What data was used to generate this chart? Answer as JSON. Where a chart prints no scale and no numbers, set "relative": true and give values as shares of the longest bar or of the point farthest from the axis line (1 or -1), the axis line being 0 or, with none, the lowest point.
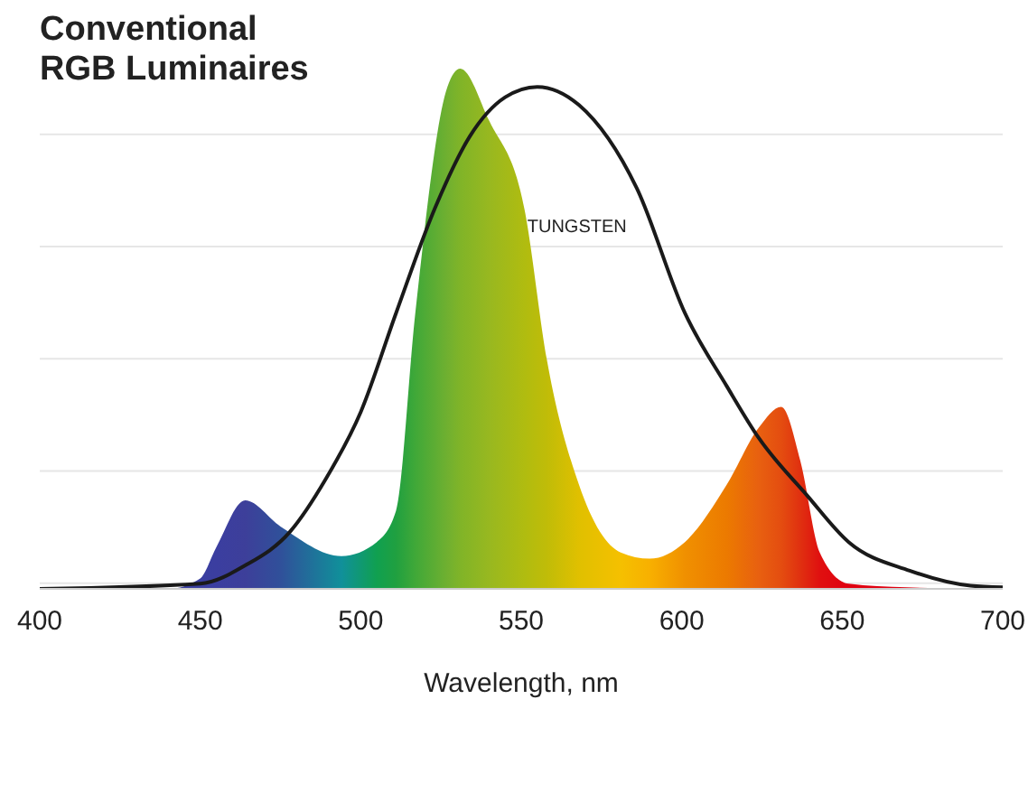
{
  "chart_data": {
    "type": "area",
    "title": "Conventional RGB Luminaires",
    "xlabel": "Wavelength, nm",
    "relative": true,
    "xlim": [
      400,
      700
    ],
    "xticks": [
      400,
      450,
      500,
      550,
      600,
      650,
      700
    ],
    "grid": "y",
    "legend": false,
    "series": [
      {
        "x": [
          400,
          440,
          450,
          455,
          464,
          475,
          494,
          505,
          511,
          517,
          527,
          531,
          540,
          551,
          558,
          568,
          581,
          590,
          601,
          614,
          624,
          631,
          637,
          643,
          652,
          670,
          700
        ],
        "values": [
          0,
          0,
          0.02,
          0.08,
          0.17,
          0.12,
          0.063,
          0.09,
          0.15,
          0.53,
          0.965,
          1,
          0.9,
          0.73,
          0.44,
          0.2,
          0.07,
          0.058,
          0.09,
          0.2,
          0.31,
          0.35,
          0.245,
          0.07,
          0.01,
          0.003,
          0
        ],
        "colors": [
          "#3a3a9a",
          "#383c9c",
          "#3a3fa0",
          "#3b3ea0",
          "#3d3f9a",
          "#30509a",
          "#10909a",
          "#10a050",
          "#20a040",
          "#40a838",
          "#70b030",
          "#80b428",
          "#98b820",
          "#b0bc10",
          "#c0bc08",
          "#e0c000",
          "#f5c000",
          "#f8b000",
          "#f09000",
          "#ec7a00",
          "#e86010",
          "#e44d10",
          "#e03010",
          "#e01010",
          "#e00010",
          "#e00010",
          "#e00010"
        ]
      },
      {
        "type": "line",
        "name": "TUNGSTEN",
        "color": "#1a1a1a",
        "x": [
          400,
          450,
          464,
          478,
          489,
          500,
          511,
          523,
          534,
          545,
          555,
          568,
          586,
          601,
          614,
          624,
          639,
          652,
          671,
          690,
          700
        ],
        "values": [
          0,
          0.01,
          0.045,
          0.11,
          0.21,
          0.34,
          0.53,
          0.73,
          0.87,
          0.945,
          0.965,
          0.93,
          0.77,
          0.53,
          0.39,
          0.29,
          0.18,
          0.09,
          0.035,
          0.006,
          0.003
        ]
      }
    ]
  }
}
